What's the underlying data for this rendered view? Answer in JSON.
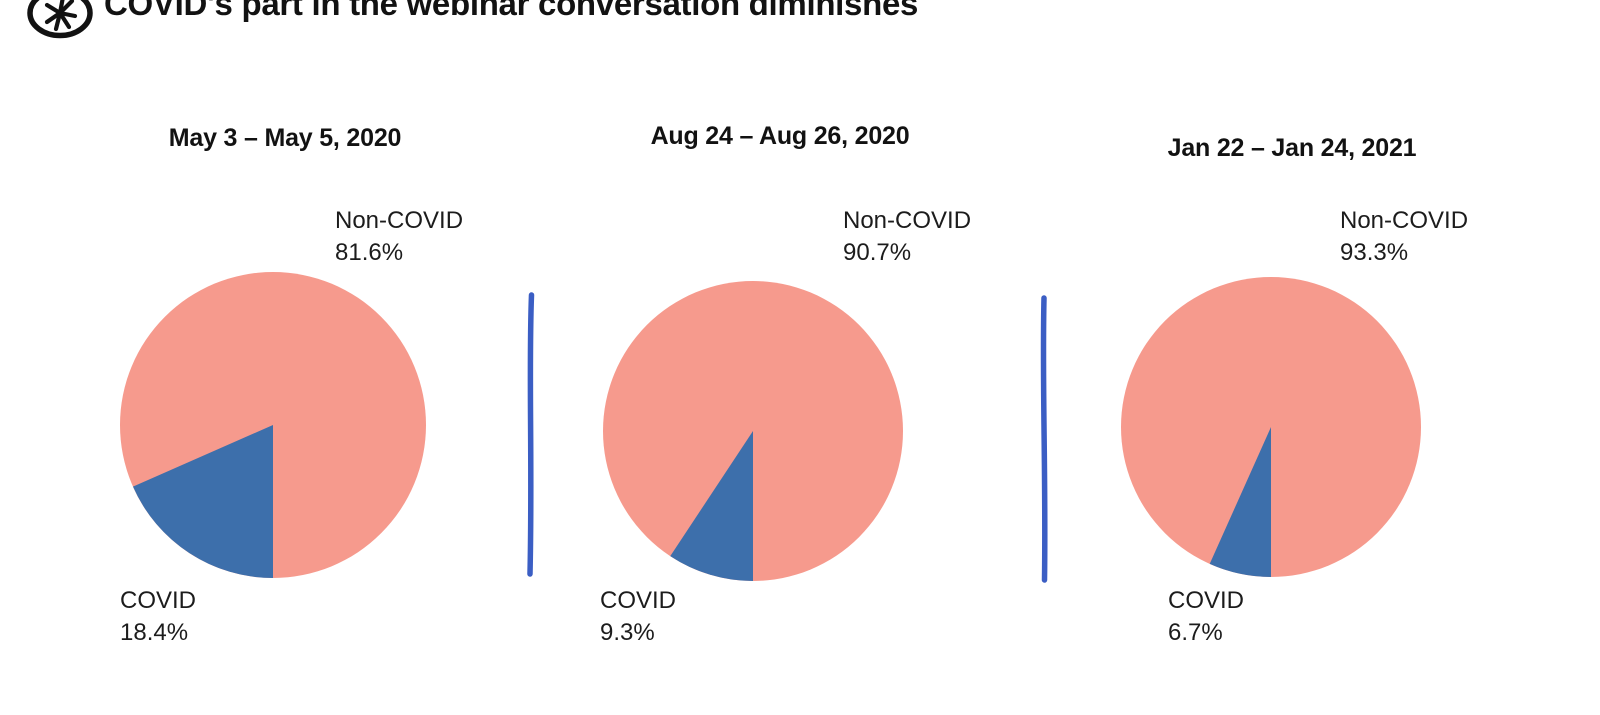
{
  "header": {
    "title": "COVID's part in the webinar conversation diminishes",
    "logo": "asterisk-circle-logo"
  },
  "colors": {
    "noncovid_slice": "#F69A8D",
    "covid_slice": "#3D6FAB",
    "divider": "#3B5EC4",
    "text": "#161616",
    "background": "#FFFFFF"
  },
  "chart_data": [
    {
      "type": "pie",
      "title": "May 3 – May 5, 2020",
      "labels": [
        "Non-COVID",
        "COVID"
      ],
      "values": [
        81.6,
        18.4
      ],
      "slices": [
        {
          "label": "Non-COVID",
          "value": 81.6,
          "pct_text": "81.6%",
          "color": "#F69A8D",
          "label_position": "top-right"
        },
        {
          "label": "COVID",
          "value": 18.4,
          "pct_text": "18.4%",
          "color": "#3D6FAB",
          "label_position": "bottom-left"
        }
      ],
      "start_angle_deg": 180,
      "direction": "clockwise",
      "legend_position": "none"
    },
    {
      "type": "pie",
      "title": "Aug 24 – Aug 26, 2020",
      "labels": [
        "Non-COVID",
        "COVID"
      ],
      "values": [
        90.7,
        9.3
      ],
      "slices": [
        {
          "label": "Non-COVID",
          "value": 90.7,
          "pct_text": "90.7%",
          "color": "#F69A8D",
          "label_position": "top-right"
        },
        {
          "label": "COVID",
          "value": 9.3,
          "pct_text": "9.3%",
          "color": "#3D6FAB",
          "label_position": "bottom-left"
        }
      ],
      "start_angle_deg": 180,
      "direction": "clockwise",
      "legend_position": "none"
    },
    {
      "type": "pie",
      "title": "Jan 22 – Jan 24, 2021",
      "labels": [
        "Non-COVID",
        "COVID"
      ],
      "values": [
        93.3,
        6.7
      ],
      "slices": [
        {
          "label": "Non-COVID",
          "value": 93.3,
          "pct_text": "93.3%",
          "color": "#F69A8D",
          "label_position": "top-right"
        },
        {
          "label": "COVID",
          "value": 6.7,
          "pct_text": "6.7%",
          "color": "#3D6FAB",
          "label_position": "bottom-left"
        }
      ],
      "start_angle_deg": 180,
      "direction": "clockwise",
      "legend_position": "none"
    }
  ],
  "dividers": {
    "count": 2,
    "style": "hand-drawn-vertical-line"
  }
}
